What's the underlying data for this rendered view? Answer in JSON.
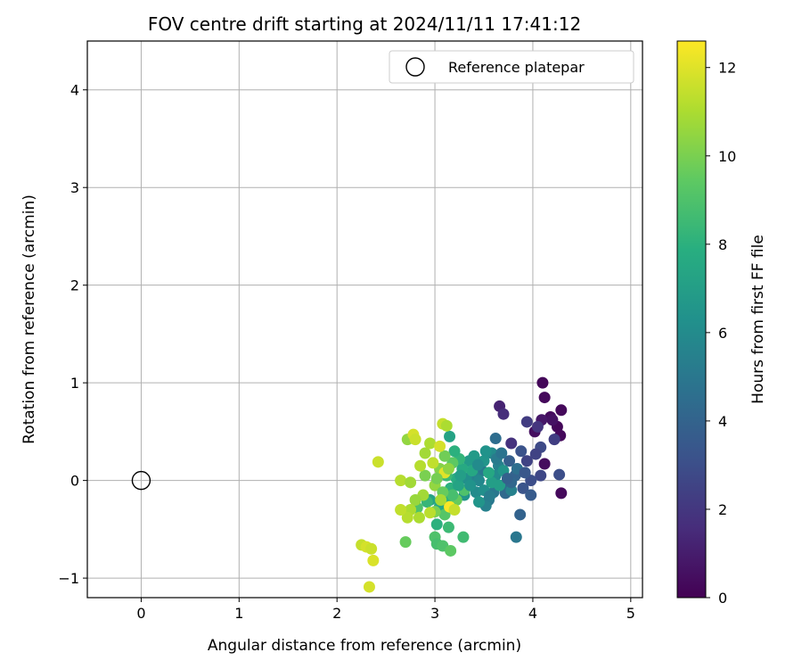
{
  "chart_data": {
    "type": "scatter",
    "title": "FOV centre drift starting at 2024/11/11 17:41:12",
    "xlabel": "Angular distance from reference (arcmin)",
    "ylabel": "Rotation from reference (arcmin)",
    "xlim": [
      -0.55,
      5.12
    ],
    "ylim": [
      -1.2,
      4.5
    ],
    "x_ticks": [
      0,
      1,
      2,
      3,
      4,
      5
    ],
    "y_ticks": [
      -1,
      0,
      1,
      2,
      3,
      4
    ],
    "grid": true,
    "legend": {
      "position": "top-right",
      "entries": [
        "Reference platepar"
      ]
    },
    "reference_point": {
      "label": "Reference platepar",
      "x": 0,
      "y": 0
    },
    "colorbar": {
      "label": "Hours from first FF file",
      "colormap": "viridis",
      "range": [
        0,
        12.6
      ],
      "ticks": [
        0,
        2,
        4,
        6,
        8,
        10,
        12
      ]
    },
    "points": [
      {
        "x": 4.1,
        "y": 1.0,
        "c": 0.2
      },
      {
        "x": 4.12,
        "y": 0.85,
        "c": 0.3
      },
      {
        "x": 4.29,
        "y": 0.72,
        "c": 0.3
      },
      {
        "x": 4.18,
        "y": 0.65,
        "c": 0.4
      },
      {
        "x": 4.25,
        "y": 0.55,
        "c": 0.2
      },
      {
        "x": 4.28,
        "y": 0.46,
        "c": 0.3
      },
      {
        "x": 4.2,
        "y": 0.62,
        "c": 0.6
      },
      {
        "x": 4.02,
        "y": 0.5,
        "c": 0.5
      },
      {
        "x": 4.09,
        "y": 0.62,
        "c": 0.8
      },
      {
        "x": 4.12,
        "y": 0.17,
        "c": 0.4
      },
      {
        "x": 4.29,
        "y": -0.13,
        "c": 0.3
      },
      {
        "x": 3.66,
        "y": 0.76,
        "c": 1.2
      },
      {
        "x": 3.7,
        "y": 0.68,
        "c": 1.6
      },
      {
        "x": 3.94,
        "y": 0.6,
        "c": 2.2
      },
      {
        "x": 4.05,
        "y": 0.55,
        "c": 1.9
      },
      {
        "x": 4.22,
        "y": 0.42,
        "c": 2.3
      },
      {
        "x": 4.08,
        "y": 0.34,
        "c": 2.8
      },
      {
        "x": 4.03,
        "y": 0.27,
        "c": 2.5
      },
      {
        "x": 3.78,
        "y": 0.38,
        "c": 1.8
      },
      {
        "x": 3.94,
        "y": 0.2,
        "c": 2.5
      },
      {
        "x": 4.27,
        "y": 0.06,
        "c": 3.0
      },
      {
        "x": 4.08,
        "y": 0.05,
        "c": 2.7
      },
      {
        "x": 3.98,
        "y": 0.0,
        "c": 3.0
      },
      {
        "x": 3.9,
        "y": -0.08,
        "c": 3.3
      },
      {
        "x": 3.87,
        "y": -0.35,
        "c": 4.0
      },
      {
        "x": 3.83,
        "y": -0.58,
        "c": 5.0
      },
      {
        "x": 3.62,
        "y": 0.43,
        "c": 4.5
      },
      {
        "x": 3.76,
        "y": 0.2,
        "c": 3.8
      },
      {
        "x": 3.82,
        "y": 0.05,
        "c": 4.0
      },
      {
        "x": 3.72,
        "y": -0.05,
        "c": 4.5
      },
      {
        "x": 3.6,
        "y": -0.12,
        "c": 5.0
      },
      {
        "x": 3.72,
        "y": -0.13,
        "c": 4.3
      },
      {
        "x": 3.78,
        "y": -0.1,
        "c": 5.5
      },
      {
        "x": 3.55,
        "y": -0.2,
        "c": 5.0
      },
      {
        "x": 3.52,
        "y": -0.26,
        "c": 5.5
      },
      {
        "x": 3.48,
        "y": 0.1,
        "c": 5.0
      },
      {
        "x": 3.65,
        "y": 0.15,
        "c": 5.5
      },
      {
        "x": 3.58,
        "y": 0.28,
        "c": 6.0
      },
      {
        "x": 3.4,
        "y": 0.05,
        "c": 5.5
      },
      {
        "x": 3.42,
        "y": -0.12,
        "c": 6.0
      },
      {
        "x": 3.45,
        "y": -0.22,
        "c": 6.5
      },
      {
        "x": 3.32,
        "y": 0.02,
        "c": 6.2
      },
      {
        "x": 3.3,
        "y": -0.15,
        "c": 6.5
      },
      {
        "x": 3.35,
        "y": 0.2,
        "c": 6.8
      },
      {
        "x": 3.5,
        "y": 0.2,
        "c": 6.5
      },
      {
        "x": 3.62,
        "y": 0.05,
        "c": 6.0
      },
      {
        "x": 3.7,
        "y": 0.1,
        "c": 6.5
      },
      {
        "x": 3.66,
        "y": -0.05,
        "c": 7.0
      },
      {
        "x": 3.58,
        "y": -0.02,
        "c": 7.0
      },
      {
        "x": 3.55,
        "y": 0.08,
        "c": 7.5
      },
      {
        "x": 3.38,
        "y": 0.1,
        "c": 7.5
      },
      {
        "x": 3.28,
        "y": 0.12,
        "c": 7.6
      },
      {
        "x": 3.22,
        "y": 0.02,
        "c": 7.8
      },
      {
        "x": 3.16,
        "y": -0.08,
        "c": 8.0
      },
      {
        "x": 3.12,
        "y": 0.05,
        "c": 8.5
      },
      {
        "x": 3.25,
        "y": 0.22,
        "c": 8.2
      },
      {
        "x": 3.2,
        "y": 0.3,
        "c": 8.0
      },
      {
        "x": 3.15,
        "y": 0.45,
        "c": 7.2
      },
      {
        "x": 3.12,
        "y": -0.22,
        "c": 8.0
      },
      {
        "x": 3.05,
        "y": -0.26,
        "c": 7.5
      },
      {
        "x": 2.95,
        "y": -0.2,
        "c": 7.2
      },
      {
        "x": 2.92,
        "y": -0.22,
        "c": 8.3
      },
      {
        "x": 2.82,
        "y": -0.28,
        "c": 9.0
      },
      {
        "x": 3.14,
        "y": -0.48,
        "c": 8.5
      },
      {
        "x": 3.02,
        "y": -0.45,
        "c": 8.0
      },
      {
        "x": 3.29,
        "y": -0.58,
        "c": 8.6
      },
      {
        "x": 3.0,
        "y": -0.58,
        "c": 9.0
      },
      {
        "x": 3.02,
        "y": -0.65,
        "c": 8.8
      },
      {
        "x": 3.08,
        "y": -0.67,
        "c": 9.0
      },
      {
        "x": 3.16,
        "y": -0.72,
        "c": 9.4
      },
      {
        "x": 2.7,
        "y": -0.63,
        "c": 9.6
      },
      {
        "x": 3.1,
        "y": -0.35,
        "c": 9.2
      },
      {
        "x": 3.0,
        "y": -0.32,
        "c": 10.0
      },
      {
        "x": 3.22,
        "y": -0.2,
        "c": 9.6
      },
      {
        "x": 3.3,
        "y": -0.1,
        "c": 9.0
      },
      {
        "x": 3.18,
        "y": 0.18,
        "c": 9.4
      },
      {
        "x": 3.1,
        "y": 0.25,
        "c": 9.8
      },
      {
        "x": 3.05,
        "y": 0.12,
        "c": 10.2
      },
      {
        "x": 3.0,
        "y": -0.05,
        "c": 10.5
      },
      {
        "x": 2.9,
        "y": 0.05,
        "c": 10.0
      },
      {
        "x": 2.88,
        "y": -0.15,
        "c": 10.8
      },
      {
        "x": 2.8,
        "y": -0.2,
        "c": 10.6
      },
      {
        "x": 2.75,
        "y": -0.3,
        "c": 11.0
      },
      {
        "x": 2.72,
        "y": -0.38,
        "c": 11.2
      },
      {
        "x": 2.65,
        "y": -0.3,
        "c": 11.4
      },
      {
        "x": 2.84,
        "y": -0.38,
        "c": 11.0
      },
      {
        "x": 2.95,
        "y": -0.33,
        "c": 11.3
      },
      {
        "x": 3.15,
        "y": -0.27,
        "c": 12.5
      },
      {
        "x": 3.2,
        "y": -0.3,
        "c": 11.5
      },
      {
        "x": 3.1,
        "y": 0.08,
        "c": 12.0
      },
      {
        "x": 2.9,
        "y": 0.28,
        "c": 10.8
      },
      {
        "x": 2.85,
        "y": 0.15,
        "c": 11.2
      },
      {
        "x": 2.95,
        "y": 0.38,
        "c": 11.0
      },
      {
        "x": 2.72,
        "y": 0.42,
        "c": 10.5
      },
      {
        "x": 2.78,
        "y": 0.47,
        "c": 11.8
      },
      {
        "x": 2.8,
        "y": 0.42,
        "c": 11.6
      },
      {
        "x": 3.08,
        "y": 0.58,
        "c": 11.5
      },
      {
        "x": 3.12,
        "y": 0.56,
        "c": 11.0
      },
      {
        "x": 3.05,
        "y": 0.35,
        "c": 11.8
      },
      {
        "x": 2.42,
        "y": 0.19,
        "c": 11.6
      },
      {
        "x": 2.65,
        "y": 0.0,
        "c": 11.2
      },
      {
        "x": 2.75,
        "y": -0.02,
        "c": 10.8
      },
      {
        "x": 2.25,
        "y": -0.66,
        "c": 11.5
      },
      {
        "x": 2.3,
        "y": -0.68,
        "c": 11.8
      },
      {
        "x": 2.35,
        "y": -0.7,
        "c": 11.6
      },
      {
        "x": 2.37,
        "y": -0.82,
        "c": 11.9
      },
      {
        "x": 2.33,
        "y": -1.09,
        "c": 11.8
      },
      {
        "x": 3.4,
        "y": 0.25,
        "c": 6.8
      },
      {
        "x": 3.45,
        "y": 0.0,
        "c": 5.8
      },
      {
        "x": 3.36,
        "y": -0.05,
        "c": 6.4
      },
      {
        "x": 3.5,
        "y": -0.1,
        "c": 6.2
      },
      {
        "x": 3.63,
        "y": 0.22,
        "c": 5.2
      },
      {
        "x": 3.84,
        "y": 0.12,
        "c": 4.6
      },
      {
        "x": 3.78,
        "y": -0.02,
        "c": 4.2
      },
      {
        "x": 3.98,
        "y": -0.15,
        "c": 3.6
      },
      {
        "x": 3.88,
        "y": 0.3,
        "c": 3.2
      },
      {
        "x": 3.52,
        "y": 0.3,
        "c": 6.4
      },
      {
        "x": 3.24,
        "y": -0.05,
        "c": 7.3
      },
      {
        "x": 3.18,
        "y": -0.15,
        "c": 8.8
      },
      {
        "x": 3.08,
        "y": -0.12,
        "c": 9.6
      },
      {
        "x": 3.02,
        "y": 0.02,
        "c": 9.9
      },
      {
        "x": 3.14,
        "y": 0.12,
        "c": 10.4
      },
      {
        "x": 3.06,
        "y": -0.2,
        "c": 10.9
      },
      {
        "x": 2.98,
        "y": 0.18,
        "c": 11.4
      },
      {
        "x": 3.26,
        "y": 0.05,
        "c": 7.0
      },
      {
        "x": 3.44,
        "y": 0.16,
        "c": 6.0
      },
      {
        "x": 3.56,
        "y": -0.16,
        "c": 5.3
      },
      {
        "x": 3.68,
        "y": 0.28,
        "c": 4.8
      },
      {
        "x": 3.74,
        "y": 0.02,
        "c": 3.9
      },
      {
        "x": 3.92,
        "y": 0.08,
        "c": 3.4
      }
    ]
  }
}
